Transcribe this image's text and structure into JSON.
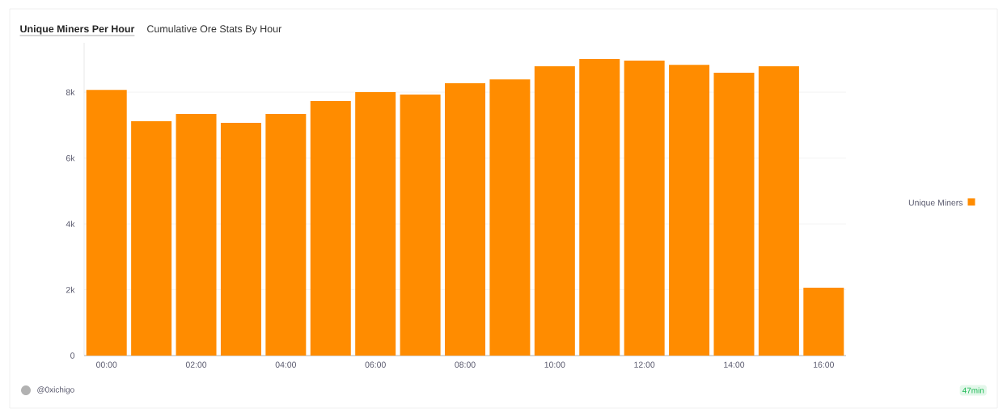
{
  "chart_data": {
    "type": "bar",
    "title": "Unique Miners Per Hour",
    "subtitle": "Cumulative Ore Stats By Hour",
    "categories": [
      "00:00",
      null,
      "02:00",
      null,
      "04:00",
      null,
      "06:00",
      null,
      "08:00",
      null,
      "10:00",
      null,
      "12:00",
      null,
      "14:00",
      null,
      "16:00"
    ],
    "series": [
      {
        "name": "Unique Miners",
        "color": "#ff8c00",
        "values": [
          8070,
          7120,
          7340,
          7070,
          7340,
          7730,
          8000,
          7930,
          8270,
          8390,
          8790,
          9010,
          8960,
          8830,
          8590,
          8790,
          2060
        ]
      }
    ],
    "yticks": [
      0,
      {
        "value": 2000,
        "label": "2k"
      },
      {
        "value": 4000,
        "label": "4k"
      },
      {
        "value": 6000,
        "label": "6k"
      },
      {
        "value": 8000,
        "label": "8k"
      }
    ],
    "ylim": [
      0,
      9500
    ],
    "grid": "y",
    "legend": "right",
    "annotations": [
      "@0xichigo",
      "47min"
    ]
  }
}
